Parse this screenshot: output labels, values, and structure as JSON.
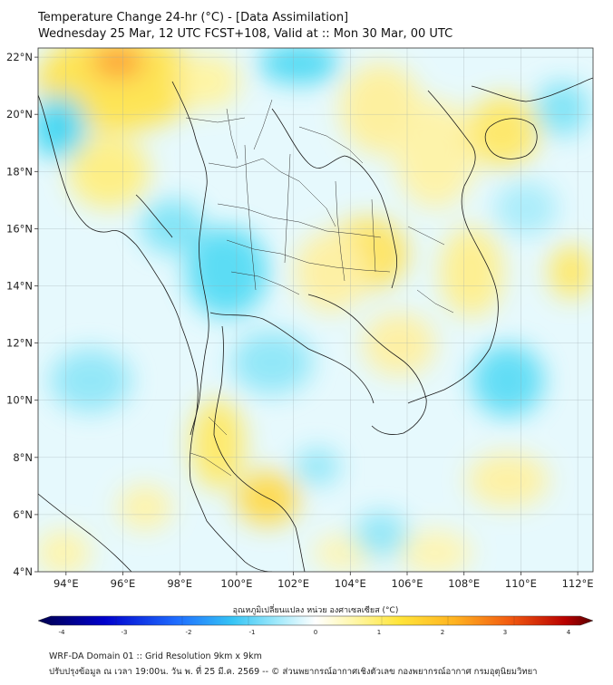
{
  "title_line1": "Temperature Change 24-hr (°C) - [Data Assimilation]",
  "title_line2": "Wednesday 25 Mar, 12 UTC FCST+108, Valid at :: Mon 30 Mar, 00 UTC",
  "map": {
    "projection": "lat-lon",
    "lon_range": [
      93,
      112.5
    ],
    "lat_range": [
      4,
      22.3
    ],
    "lon_ticks": [
      "94°E",
      "96°E",
      "98°E",
      "100°E",
      "102°E",
      "104°E",
      "106°E",
      "108°E",
      "110°E",
      "112°E"
    ],
    "lat_ticks": [
      "4°N",
      "6°N",
      "8°N",
      "10°N",
      "12°N",
      "14°N",
      "16°N",
      "18°N",
      "20°N",
      "22°N"
    ],
    "grid": true
  },
  "colorbar": {
    "title": "อุณหภูมิเปลี่ยนแปลง หน่วย องศาเซลเซียส (°C)",
    "range": [
      -4,
      4
    ],
    "tick_labels": [
      "-4",
      "-3",
      "-2",
      "-1",
      "0",
      "1",
      "2",
      "3",
      "4"
    ],
    "colors": [
      "#000066",
      "#0000cc",
      "#2a5cff",
      "#33aaff",
      "#4fd8f2",
      "#b6eefc",
      "#ffffff",
      "#fffcc0",
      "#ffe94d",
      "#ffbe2a",
      "#ff7a14",
      "#e41e0a",
      "#7a0000"
    ]
  },
  "footer_line1": "WRF-DA Domain 01 :: Grid Resolution 9km x 9km",
  "footer_line2": "ปรับปรุงข้อมูล ณ เวลา 19:00น. วัน พ. ที่ 25 มี.ค. 2569 -- © ส่วนพยากรณ์อากาศเชิงตัวเลข กองพยากรณ์อากาศ กรมอุตุนิยมวิทยา"
}
